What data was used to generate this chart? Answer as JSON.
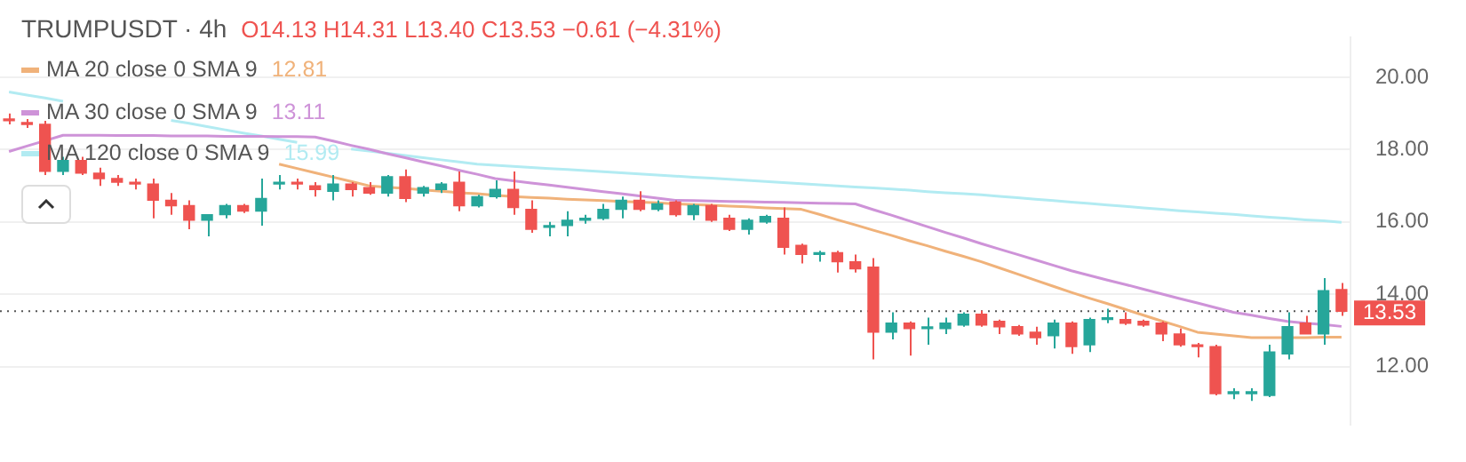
{
  "chart_data": {
    "type": "candlestick",
    "title": "TRUMPUSDT · 4h",
    "subtitle": "O14.13 H14.31 L13.40 C13.53 −0.61 (−4.31%)",
    "categories": [
      null,
      null,
      null,
      null,
      null,
      null,
      null,
      null,
      null,
      null,
      null,
      null,
      null,
      null,
      null,
      null,
      null,
      null,
      null,
      null,
      null,
      null,
      null,
      null,
      null,
      null,
      null,
      null,
      null,
      null,
      null,
      null,
      null,
      null,
      null,
      null,
      null,
      null,
      null,
      null,
      null,
      null,
      null,
      null,
      null,
      null,
      null,
      null,
      null,
      null,
      null,
      null,
      null,
      null,
      null,
      null,
      null,
      null,
      null,
      null,
      null,
      null,
      null,
      null,
      null,
      null,
      null,
      null,
      null,
      null,
      null,
      null,
      null,
      null,
      null
    ],
    "ohlc": [
      [
        18.85,
        19.0,
        18.7,
        18.8
      ],
      [
        18.75,
        18.85,
        18.6,
        18.7
      ],
      [
        18.7,
        18.8,
        17.3,
        17.4
      ],
      [
        17.4,
        17.8,
        17.3,
        17.7
      ],
      [
        17.7,
        17.8,
        17.3,
        17.35
      ],
      [
        17.35,
        17.5,
        17.0,
        17.2
      ],
      [
        17.2,
        17.3,
        17.0,
        17.1
      ],
      [
        17.1,
        17.2,
        16.9,
        17.05
      ],
      [
        17.05,
        17.2,
        16.1,
        16.6
      ],
      [
        16.6,
        16.8,
        16.2,
        16.45
      ],
      [
        16.45,
        16.6,
        15.8,
        16.05
      ],
      [
        16.05,
        16.2,
        15.6,
        16.2
      ],
      [
        16.2,
        16.5,
        16.1,
        16.45
      ],
      [
        16.45,
        16.5,
        16.25,
        16.3
      ],
      [
        16.3,
        17.2,
        15.9,
        16.65
      ],
      [
        17.05,
        17.3,
        16.9,
        17.1
      ],
      [
        17.1,
        17.2,
        16.9,
        17.05
      ],
      [
        17.0,
        17.1,
        16.7,
        16.9
      ],
      [
        16.85,
        17.3,
        16.6,
        17.05
      ],
      [
        17.05,
        17.1,
        16.7,
        16.9
      ],
      [
        16.95,
        17.1,
        16.75,
        16.8
      ],
      [
        16.8,
        17.3,
        16.7,
        17.25
      ],
      [
        17.25,
        17.45,
        16.55,
        16.65
      ],
      [
        16.8,
        17.0,
        16.7,
        16.95
      ],
      [
        16.9,
        17.1,
        16.8,
        17.05
      ],
      [
        17.1,
        17.4,
        16.3,
        16.45
      ],
      [
        16.45,
        16.75,
        16.4,
        16.7
      ],
      [
        16.7,
        17.15,
        16.65,
        16.9
      ],
      [
        16.9,
        17.4,
        16.2,
        16.4
      ],
      [
        16.35,
        16.6,
        15.7,
        15.8
      ],
      [
        15.85,
        16.0,
        15.6,
        15.9
      ],
      [
        15.9,
        16.3,
        15.6,
        16.05
      ],
      [
        16.05,
        16.2,
        15.95,
        16.1
      ],
      [
        16.1,
        16.5,
        16.05,
        16.35
      ],
      [
        16.35,
        16.7,
        16.1,
        16.6
      ],
      [
        16.6,
        16.85,
        16.3,
        16.35
      ],
      [
        16.35,
        16.6,
        16.3,
        16.5
      ],
      [
        16.55,
        16.6,
        16.15,
        16.2
      ],
      [
        16.2,
        16.5,
        16.05,
        16.45
      ],
      [
        16.45,
        16.5,
        16.0,
        16.05
      ],
      [
        16.1,
        16.2,
        15.75,
        15.8
      ],
      [
        15.8,
        16.1,
        15.65,
        16.05
      ],
      [
        16.0,
        16.2,
        15.95,
        16.15
      ],
      [
        16.1,
        16.4,
        15.1,
        15.3
      ],
      [
        15.35,
        15.4,
        14.85,
        15.1
      ],
      [
        15.1,
        15.2,
        14.9,
        15.12
      ],
      [
        15.15,
        15.2,
        14.6,
        14.9
      ],
      [
        14.9,
        15.1,
        14.6,
        14.7
      ],
      [
        14.75,
        15.0,
        12.2,
        12.95
      ],
      [
        12.95,
        13.5,
        12.75,
        13.2
      ],
      [
        13.2,
        13.25,
        12.3,
        13.05
      ],
      [
        13.05,
        13.35,
        12.6,
        13.07
      ],
      [
        13.05,
        13.35,
        12.9,
        13.2
      ],
      [
        13.15,
        13.5,
        13.1,
        13.45
      ],
      [
        13.45,
        13.55,
        13.1,
        13.15
      ],
      [
        13.25,
        13.3,
        12.9,
        13.1
      ],
      [
        13.1,
        13.15,
        12.85,
        12.9
      ],
      [
        12.95,
        13.1,
        12.6,
        12.8
      ],
      [
        12.85,
        13.3,
        12.5,
        13.2
      ],
      [
        13.2,
        13.25,
        12.35,
        12.55
      ],
      [
        12.6,
        13.35,
        12.4,
        13.3
      ],
      [
        13.3,
        13.6,
        13.2,
        13.32
      ],
      [
        13.3,
        13.5,
        13.15,
        13.2
      ],
      [
        13.25,
        13.3,
        13.1,
        13.15
      ],
      [
        13.2,
        13.25,
        12.7,
        12.9
      ],
      [
        12.9,
        13.05,
        12.55,
        12.6
      ],
      [
        12.6,
        12.65,
        12.25,
        12.55
      ],
      [
        12.55,
        12.6,
        11.2,
        11.25
      ],
      [
        11.25,
        11.4,
        11.1,
        11.27
      ],
      [
        11.25,
        11.4,
        11.05,
        11.27
      ],
      [
        11.2,
        12.6,
        11.15,
        12.4
      ],
      [
        12.35,
        13.5,
        12.2,
        13.1
      ],
      [
        13.2,
        13.4,
        12.9,
        12.9
      ],
      [
        12.9,
        14.45,
        12.6,
        14.1
      ],
      [
        14.13,
        14.31,
        13.4,
        13.53
      ]
    ],
    "colors": [
      "#ef5350",
      "#ef5350",
      "#ef5350",
      "#26a69a",
      "#ef5350",
      "#ef5350",
      "#ef5350",
      "#ef5350",
      "#ef5350",
      "#ef5350",
      "#ef5350",
      "#26a69a",
      "#26a69a",
      "#ef5350",
      "#26a69a",
      "#26a69a",
      "#ef5350",
      "#ef5350",
      "#26a69a",
      "#ef5350",
      "#ef5350",
      "#26a69a",
      "#ef5350",
      "#26a69a",
      "#26a69a",
      "#ef5350",
      "#26a69a",
      "#26a69a",
      "#ef5350",
      "#ef5350",
      "#26a69a",
      "#26a69a",
      "#26a69a",
      "#26a69a",
      "#26a69a",
      "#ef5350",
      "#26a69a",
      "#ef5350",
      "#26a69a",
      "#ef5350",
      "#ef5350",
      "#26a69a",
      "#26a69a",
      "#ef5350",
      "#ef5350",
      "#26a69a",
      "#ef5350",
      "#ef5350",
      "#ef5350",
      "#26a69a",
      "#ef5350",
      "#26a69a",
      "#26a69a",
      "#26a69a",
      "#ef5350",
      "#ef5350",
      "#ef5350",
      "#ef5350",
      "#26a69a",
      "#ef5350",
      "#26a69a",
      "#26a69a",
      "#ef5350",
      "#ef5350",
      "#ef5350",
      "#ef5350",
      "#ef5350",
      "#ef5350",
      "#26a69a",
      "#26a69a",
      "#26a69a",
      "#26a69a",
      "#ef5350",
      "#26a69a",
      "#ef5350"
    ],
    "series": [
      {
        "type": "line",
        "name": "MA 20 close 0 SMA 9",
        "color": "#f0b27a",
        "values": [
          null,
          null,
          null,
          null,
          null,
          null,
          null,
          null,
          null,
          null,
          null,
          null,
          null,
          null,
          null,
          17.6,
          17.48,
          17.36,
          17.24,
          17.12,
          17.0,
          16.96,
          16.93,
          16.89,
          16.85,
          16.81,
          16.78,
          16.74,
          16.7,
          16.68,
          16.66,
          16.63,
          16.61,
          16.59,
          16.57,
          16.55,
          16.53,
          16.5,
          16.48,
          16.46,
          16.44,
          16.42,
          16.39,
          16.37,
          16.35,
          16.21,
          16.06,
          15.92,
          15.77,
          15.63,
          15.48,
          15.34,
          15.19,
          15.05,
          14.9,
          14.73,
          14.56,
          14.39,
          14.22,
          14.05,
          13.89,
          13.74,
          13.58,
          13.42,
          13.26,
          13.11,
          12.95,
          12.9,
          12.85,
          12.8,
          12.8,
          12.8,
          12.8,
          12.81,
          12.81
        ]
      },
      {
        "type": "line",
        "name": "MA 30 close 0 SMA 9",
        "color": "#ce93d8",
        "values": [
          17.95,
          18.1,
          18.25,
          18.4,
          18.4,
          18.4,
          18.39,
          18.39,
          18.39,
          18.38,
          18.38,
          18.38,
          18.37,
          18.37,
          18.37,
          18.36,
          18.36,
          18.35,
          18.24,
          18.12,
          18.01,
          17.89,
          17.78,
          17.66,
          17.55,
          17.43,
          17.32,
          17.2,
          17.14,
          17.08,
          17.02,
          16.96,
          16.9,
          16.84,
          16.78,
          16.72,
          16.66,
          16.6,
          16.59,
          16.58,
          16.57,
          16.56,
          16.55,
          16.54,
          16.53,
          16.52,
          16.51,
          16.5,
          16.34,
          16.19,
          16.03,
          15.87,
          15.71,
          15.56,
          15.4,
          15.25,
          15.1,
          14.95,
          14.8,
          14.65,
          14.52,
          14.39,
          14.27,
          14.14,
          14.01,
          13.88,
          13.76,
          13.63,
          13.5,
          13.42,
          13.33,
          13.25,
          13.2,
          13.16,
          13.11
        ]
      },
      {
        "type": "line",
        "name": "MA 120 close 0 SMA 9",
        "color": "#b2ebf2",
        "values": [
          19.6,
          19.51,
          19.43,
          19.34,
          null,
          null,
          null,
          null,
          null,
          18.81,
          18.73,
          18.64,
          18.55,
          18.46,
          18.38,
          18.29,
          18.2,
          null,
          null,
          18.02,
          17.96,
          17.9,
          17.84,
          17.78,
          17.72,
          17.66,
          17.6,
          17.57,
          17.54,
          17.51,
          17.48,
          17.45,
          17.42,
          17.39,
          17.36,
          17.33,
          17.3,
          17.27,
          17.24,
          17.21,
          17.18,
          17.15,
          17.12,
          17.09,
          17.06,
          17.03,
          17.0,
          16.97,
          16.94,
          16.91,
          16.88,
          16.84,
          16.81,
          16.78,
          16.75,
          16.71,
          16.67,
          16.63,
          16.59,
          16.55,
          16.51,
          16.47,
          16.43,
          16.39,
          16.35,
          16.31,
          16.28,
          16.24,
          16.21,
          16.17,
          16.13,
          16.1,
          16.06,
          16.03,
          15.99
        ]
      }
    ],
    "ylim": [
      10.4,
      21.1
    ],
    "yticks": [
      {
        "value": 12,
        "label": "12.00"
      },
      {
        "value": 14,
        "label": "14.00"
      },
      {
        "value": 16,
        "label": "16.00"
      },
      {
        "value": 18,
        "label": "18.00"
      },
      {
        "value": 20,
        "label": "20.00"
      }
    ],
    "ref_lines": [
      {
        "axis": "y",
        "value": 13.53,
        "label": "13.53",
        "color": "#555555",
        "line_style": "dotted"
      }
    ],
    "annotations": [
      "12.81",
      "13.11",
      "15.99"
    ],
    "grid": "y",
    "legend": "top left",
    "tick_labels": "y"
  }
}
